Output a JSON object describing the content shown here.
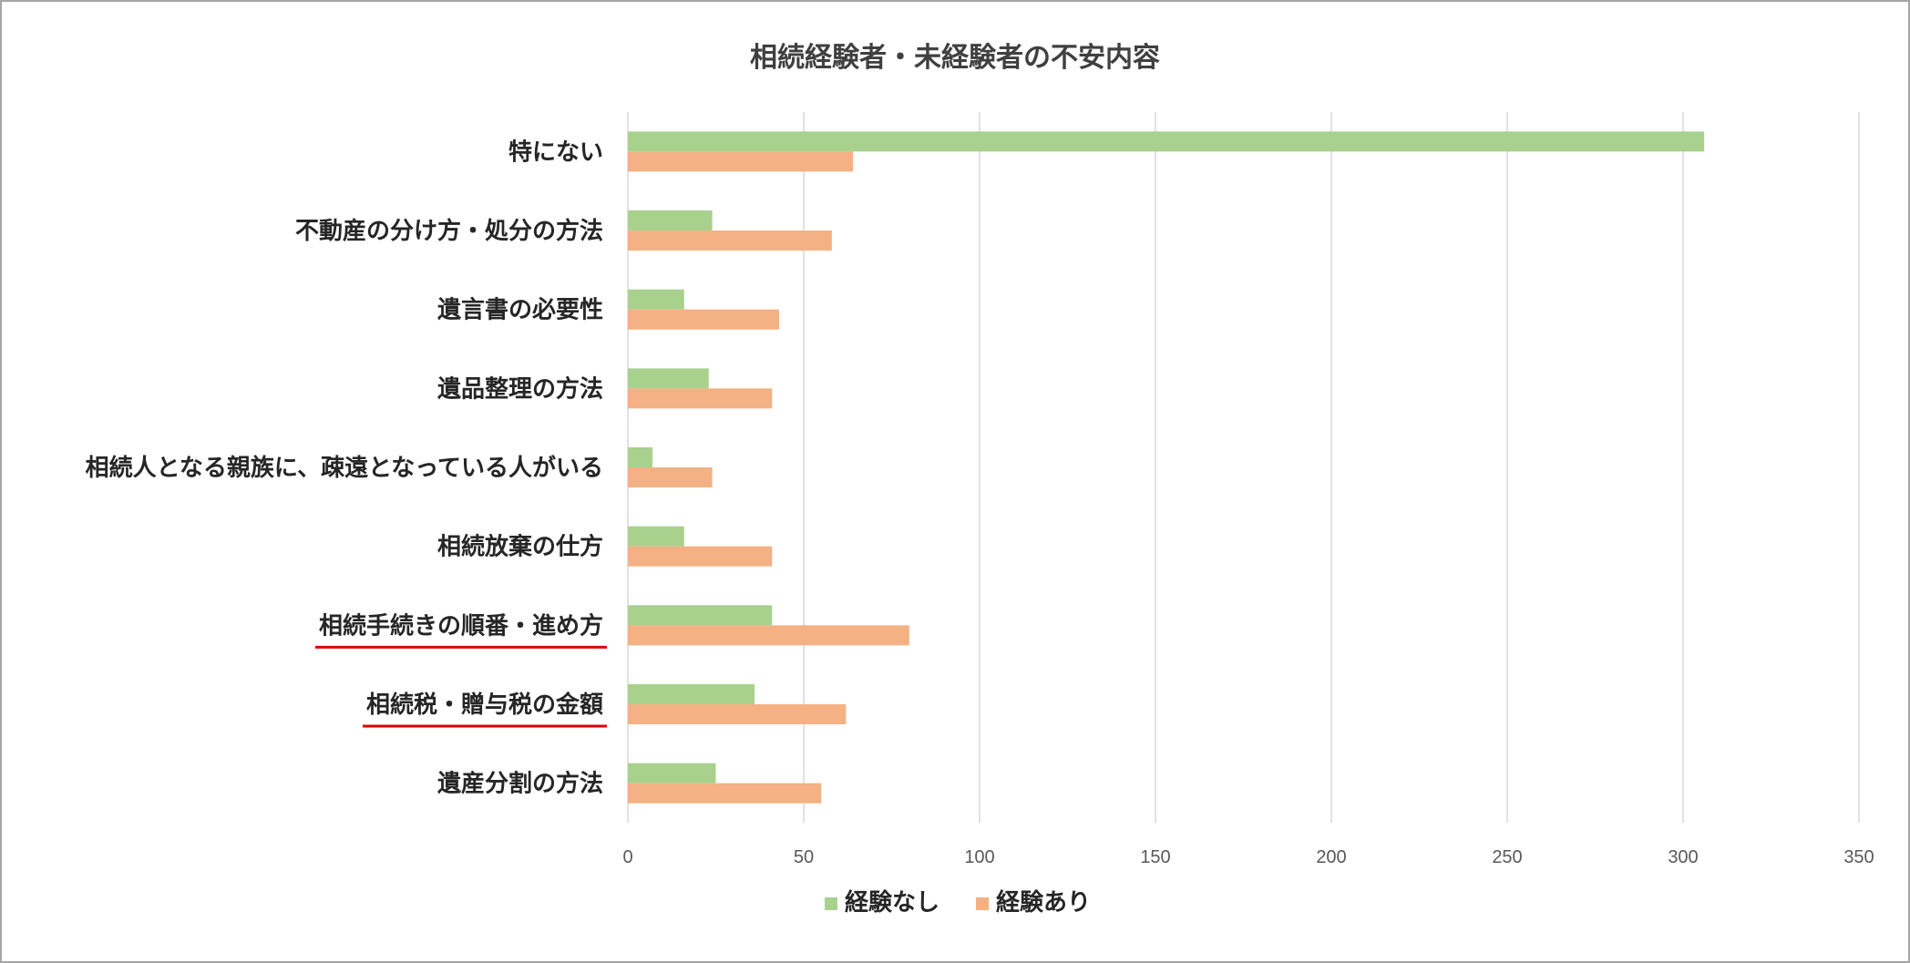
{
  "chart_data": {
    "type": "bar",
    "orientation": "horizontal",
    "title": "相続経験者・未経験者の不安内容",
    "categories": [
      "特にない",
      "不動産の分け方・処分の方法",
      "遺言書の必要性",
      "遺品整理の方法",
      "相続人となる親族に、疎遠となっている人がいる",
      "相続放棄の仕方",
      "相続手続きの順番・進め方",
      "相続税・贈与税の金額",
      "遺産分割の方法"
    ],
    "underlined_categories": [
      "相続手続きの順番・進め方",
      "相続税・贈与税の金額"
    ],
    "series": [
      {
        "name": "経験なし",
        "color": "#a9d18e",
        "values": [
          306,
          24,
          16,
          23,
          7,
          16,
          41,
          36,
          25
        ]
      },
      {
        "name": "経験あり",
        "color": "#f4b183",
        "values": [
          64,
          58,
          43,
          41,
          24,
          41,
          80,
          62,
          55
        ]
      }
    ],
    "xlim": [
      0,
      350
    ],
    "xticks": [
      "0",
      "50",
      "100",
      "150",
      "200",
      "250",
      "300",
      "350"
    ],
    "grid": true,
    "gridline_color": "#d9d9d9",
    "underline_color": "#e00000",
    "legend_position": "bottom"
  }
}
